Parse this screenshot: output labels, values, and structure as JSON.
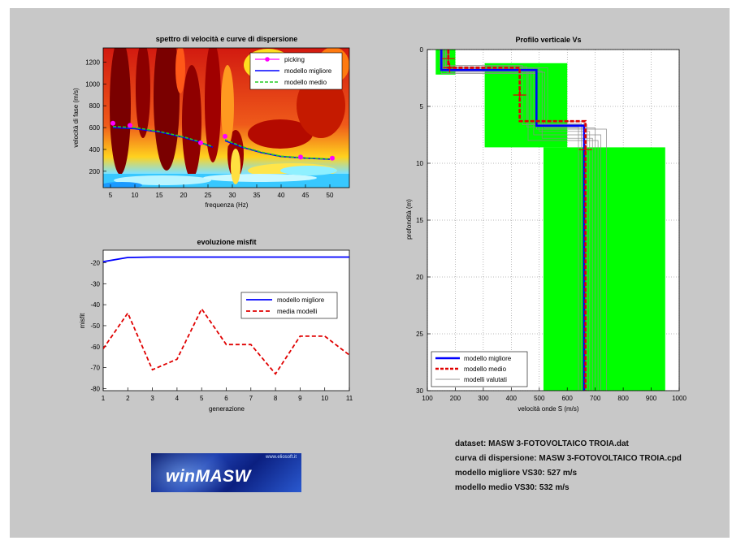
{
  "spectrum": {
    "title": "spettro di velocità e curve di dispersione",
    "xlabel": "frequenza (Hz)",
    "ylabel": "velocità di fase (m/s)",
    "xlim": [
      3.5,
      54
    ],
    "ylim": [
      50,
      1330
    ],
    "xticks": [
      5,
      10,
      15,
      20,
      25,
      30,
      35,
      40,
      45,
      50
    ],
    "yticks": [
      200,
      400,
      600,
      800,
      1000,
      1200
    ],
    "legend": [
      "picking",
      "modello migliore",
      "modello medio"
    ]
  },
  "misfit": {
    "title": "evoluzione misfit",
    "xlabel": "generazione",
    "ylabel": "misfit",
    "xlim": [
      1,
      11
    ],
    "ylim": [
      -81,
      -14
    ],
    "xticks": [
      1,
      2,
      3,
      4,
      5,
      6,
      7,
      8,
      9,
      10,
      11
    ],
    "yticks": [
      -20,
      -30,
      -40,
      -50,
      -60,
      -70,
      -80
    ],
    "legend": [
      "modello migliore",
      "media modelli"
    ]
  },
  "profile": {
    "title": "Profilo verticale Vs",
    "xlabel": "velocità onde S (m/s)",
    "ylabel": "profondità (m)",
    "xlim": [
      100,
      1000
    ],
    "ylim": [
      0,
      30
    ],
    "xticks": [
      100,
      200,
      300,
      400,
      500,
      600,
      700,
      800,
      900,
      1000
    ],
    "yticks": [
      0,
      5,
      10,
      15,
      20,
      25,
      30
    ],
    "legend": [
      "modello migliore",
      "modello medio",
      "modelli valutati"
    ]
  },
  "info": {
    "dataset": "dataset: MASW 3-FOTOVOLTAICO TROIA.dat",
    "curve": "curva di dispersione: MASW 3-FOTOVOLTAICO TROIA.cpd",
    "best_vs30": "modello migliore VS30: 527 m/s",
    "mean_vs30": "modello medio VS30: 532 m/s"
  },
  "logo": {
    "name": "winMASW",
    "url": "www.eliosoft.it"
  },
  "colors": {
    "best": "#0000ff",
    "mean": "#e00000",
    "picking": "#ff00ff",
    "range": "#00ff00",
    "background": "#c8c8c8"
  },
  "chart_data": [
    {
      "type": "heatmap",
      "title": "spettro di velocità e curve di dispersione",
      "xlabel": "frequenza (Hz)",
      "ylabel": "velocità di fase (m/s)",
      "xlim": [
        3.5,
        54
      ],
      "ylim": [
        50,
        1330
      ],
      "series": [
        {
          "name": "picking",
          "x": [
            5.5,
            9,
            23.5,
            28.5,
            44,
            50.5
          ],
          "y": [
            640,
            620,
            460,
            520,
            330,
            320
          ]
        },
        {
          "name": "modello migliore",
          "x": [
            5.5,
            10,
            15,
            20,
            23,
            26
          ],
          "y": [
            600,
            590,
            560,
            510,
            470,
            420
          ]
        },
        {
          "name": "modello migliore",
          "x": [
            28.5,
            32,
            36,
            40,
            45,
            50
          ],
          "y": [
            480,
            420,
            370,
            335,
            320,
            310
          ]
        },
        {
          "name": "modello medio",
          "x": [
            5.5,
            10,
            15,
            20,
            23,
            26
          ],
          "y": [
            610,
            600,
            565,
            515,
            475,
            425
          ]
        },
        {
          "name": "modello medio",
          "x": [
            28.5,
            32,
            36,
            40,
            45,
            50
          ],
          "y": [
            490,
            425,
            375,
            338,
            322,
            312
          ]
        }
      ]
    },
    {
      "type": "line",
      "title": "evoluzione misfit",
      "xlabel": "generazione",
      "ylabel": "misfit",
      "x": [
        1,
        2,
        3,
        4,
        5,
        6,
        7,
        8,
        9,
        10,
        11
      ],
      "series": [
        {
          "name": "modello migliore",
          "values": [
            -19.5,
            -17.5,
            -17.3,
            -17.3,
            -17.3,
            -17.3,
            -17.3,
            -17.3,
            -17.3,
            -17.3,
            -17.3
          ]
        },
        {
          "name": "media modelli",
          "values": [
            -61,
            -44,
            -71,
            -66,
            -42,
            -59,
            -59,
            -73,
            -55,
            -55,
            -64
          ]
        }
      ]
    },
    {
      "type": "line",
      "title": "Profilo verticale Vs",
      "xlabel": "velocità onde S (m/s)",
      "ylabel": "profondità (m)",
      "xlim": [
        100,
        1000
      ],
      "ylim": [
        0,
        30
      ],
      "series": [
        {
          "name": "modello migliore",
          "vs": [
            150,
            490,
            660
          ],
          "top": [
            0,
            1.8,
            6.7
          ],
          "bottom": [
            1.8,
            6.7,
            30
          ]
        },
        {
          "name": "modello medio",
          "vs": [
            175,
            430,
            665
          ],
          "top": [
            0,
            1.6,
            6.3
          ],
          "bottom": [
            1.6,
            6.3,
            30
          ]
        }
      ],
      "search_ranges": [
        {
          "vs_min": 130,
          "vs_max": 200,
          "z_min": 0,
          "z_max": 2.2
        },
        {
          "vs_min": 305,
          "vs_max": 600,
          "z_min": 1.2,
          "z_max": 8.6
        },
        {
          "vs_min": 515,
          "vs_max": 950,
          "z_min": 8.6,
          "z_max": 30
        }
      ]
    }
  ]
}
